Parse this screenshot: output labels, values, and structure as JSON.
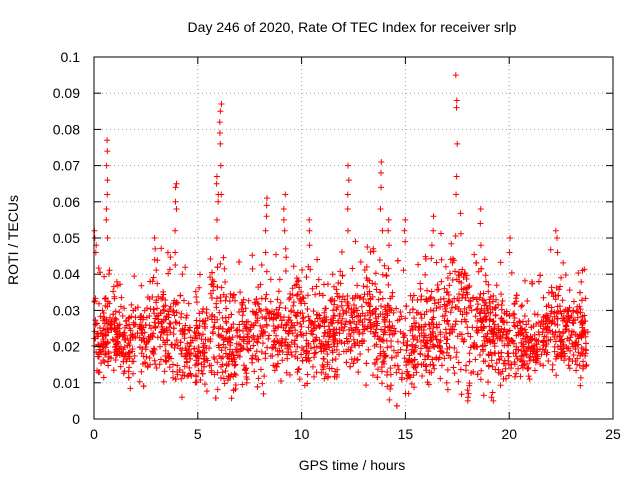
{
  "chart_data": {
    "type": "scatter",
    "title": "Day 246 of 2020, Rate Of TEC Index for receiver srlp",
    "xlabel": "GPS time / hours",
    "ylabel": "ROTI / TECUs",
    "xlim": [
      0,
      25
    ],
    "ylim": [
      0,
      0.1
    ],
    "x_ticks": [
      "0",
      "5",
      "10",
      "15",
      "20",
      "25"
    ],
    "y_ticks": [
      "0",
      "0.01",
      "0.02",
      "0.03",
      "0.04",
      "0.05",
      "0.06",
      "0.07",
      "0.08",
      "0.09",
      "0.1"
    ],
    "grid": true,
    "legend": "none",
    "marker": "plus",
    "color": "#ff0000",
    "density_profile": {
      "x": [
        0,
        0.5,
        1.0,
        1.5,
        2.0,
        2.5,
        3.0,
        3.5,
        4.0,
        4.5,
        5.0,
        5.5,
        6.0,
        6.5,
        7.0,
        7.5,
        8.0,
        8.5,
        9.0,
        9.5,
        10.0,
        10.5,
        11.0,
        11.5,
        12.0,
        12.5,
        13.0,
        13.5,
        14.0,
        14.5,
        15.0,
        15.5,
        16.0,
        16.5,
        17.0,
        17.5,
        18.0,
        18.5,
        19.0,
        19.5,
        20.0,
        20.5,
        21.0,
        21.5,
        22.0,
        22.5,
        23.0,
        23.5,
        23.8
      ],
      "y_low": [
        0.013,
        0.015,
        0.012,
        0.011,
        0.01,
        0.011,
        0.012,
        0.01,
        0.009,
        0.008,
        0.008,
        0.009,
        0.008,
        0.009,
        0.01,
        0.012,
        0.012,
        0.013,
        0.013,
        0.014,
        0.012,
        0.011,
        0.012,
        0.012,
        0.013,
        0.013,
        0.012,
        0.011,
        0.011,
        0.009,
        0.008,
        0.01,
        0.012,
        0.012,
        0.01,
        0.008,
        0.01,
        0.012,
        0.01,
        0.01,
        0.011,
        0.012,
        0.012,
        0.013,
        0.014,
        0.014,
        0.015,
        0.011,
        0.013
      ],
      "y_high": [
        0.035,
        0.03,
        0.037,
        0.03,
        0.032,
        0.034,
        0.04,
        0.038,
        0.04,
        0.032,
        0.03,
        0.034,
        0.038,
        0.032,
        0.035,
        0.036,
        0.034,
        0.035,
        0.036,
        0.04,
        0.04,
        0.036,
        0.038,
        0.034,
        0.038,
        0.04,
        0.042,
        0.04,
        0.038,
        0.036,
        0.03,
        0.033,
        0.037,
        0.04,
        0.045,
        0.048,
        0.045,
        0.04,
        0.038,
        0.036,
        0.032,
        0.032,
        0.028,
        0.03,
        0.04,
        0.036,
        0.032,
        0.034,
        0.03
      ]
    },
    "spikes": [
      {
        "x": 0.05,
        "y": [
          0.046,
          0.048,
          0.05,
          0.052
        ]
      },
      {
        "x": 0.65,
        "y": [
          0.05,
          0.055,
          0.058,
          0.062,
          0.066,
          0.07,
          0.074,
          0.077
        ]
      },
      {
        "x": 2.9,
        "y": [
          0.044,
          0.047,
          0.05
        ]
      },
      {
        "x": 3.95,
        "y": [
          0.046,
          0.052,
          0.058,
          0.06,
          0.064,
          0.065
        ]
      },
      {
        "x": 5.95,
        "y": [
          0.05,
          0.055,
          0.06,
          0.062,
          0.065,
          0.067
        ]
      },
      {
        "x": 6.1,
        "y": [
          0.062,
          0.07,
          0.076,
          0.079,
          0.082,
          0.085,
          0.087
        ]
      },
      {
        "x": 8.3,
        "y": [
          0.046,
          0.052,
          0.056,
          0.059,
          0.061
        ]
      },
      {
        "x": 9.2,
        "y": [
          0.047,
          0.052,
          0.055,
          0.058,
          0.062
        ]
      },
      {
        "x": 10.4,
        "y": [
          0.048,
          0.052,
          0.055
        ]
      },
      {
        "x": 12.25,
        "y": [
          0.052,
          0.058,
          0.062,
          0.066,
          0.07
        ]
      },
      {
        "x": 13.85,
        "y": [
          0.052,
          0.058,
          0.064,
          0.068,
          0.071
        ]
      },
      {
        "x": 14.2,
        "y": [
          0.048,
          0.052,
          0.055
        ]
      },
      {
        "x": 15.0,
        "y": [
          0.049,
          0.052,
          0.055
        ]
      },
      {
        "x": 16.3,
        "y": [
          0.048,
          0.052,
          0.056
        ]
      },
      {
        "x": 17.45,
        "y": [
          0.062,
          0.067,
          0.076,
          0.086,
          0.088,
          0.095
        ]
      },
      {
        "x": 18.6,
        "y": [
          0.048,
          0.054,
          0.058
        ]
      },
      {
        "x": 20.0,
        "y": [
          0.046,
          0.05
        ]
      },
      {
        "x": 22.3,
        "y": [
          0.046,
          0.05,
          0.052
        ]
      }
    ],
    "low_outliers": [
      {
        "x": 18.0,
        "y": [
          0.005,
          0.006,
          0.007,
          0.008
        ]
      },
      {
        "x": 19.2,
        "y": [
          0.005,
          0.006
        ]
      },
      {
        "x": 4.2,
        "y": [
          0.006
        ]
      },
      {
        "x": 15.1,
        "y": [
          0.007
        ]
      }
    ],
    "point_count": 2600
  }
}
